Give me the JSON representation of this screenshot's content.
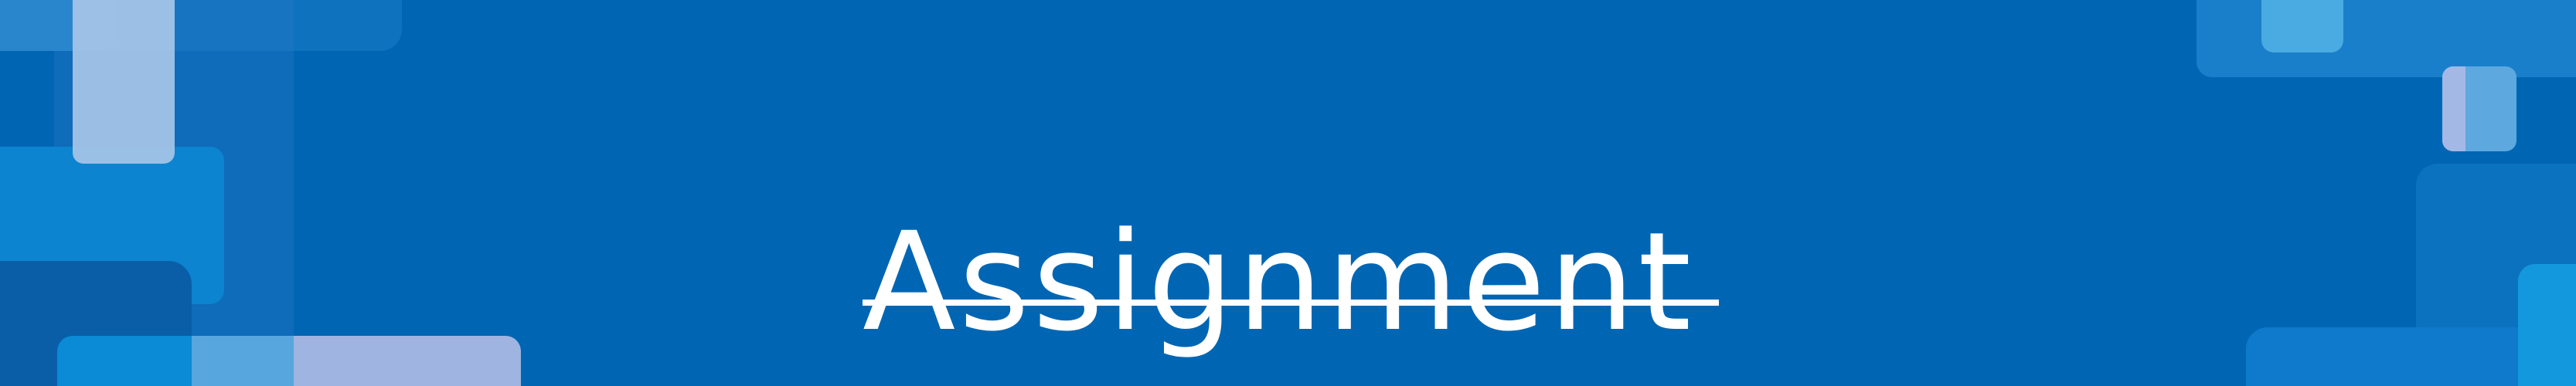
{
  "banner": {
    "title": "Assignment",
    "colors": {
      "background": "#0066b3",
      "title_text": "#ffffff",
      "underline": "#ffffff",
      "accent_light_blue": "#4aaae2",
      "accent_cyan": "#0b8ad6",
      "accent_lavender": "#9fb4e0",
      "accent_pale": "#a7c6e8"
    }
  }
}
